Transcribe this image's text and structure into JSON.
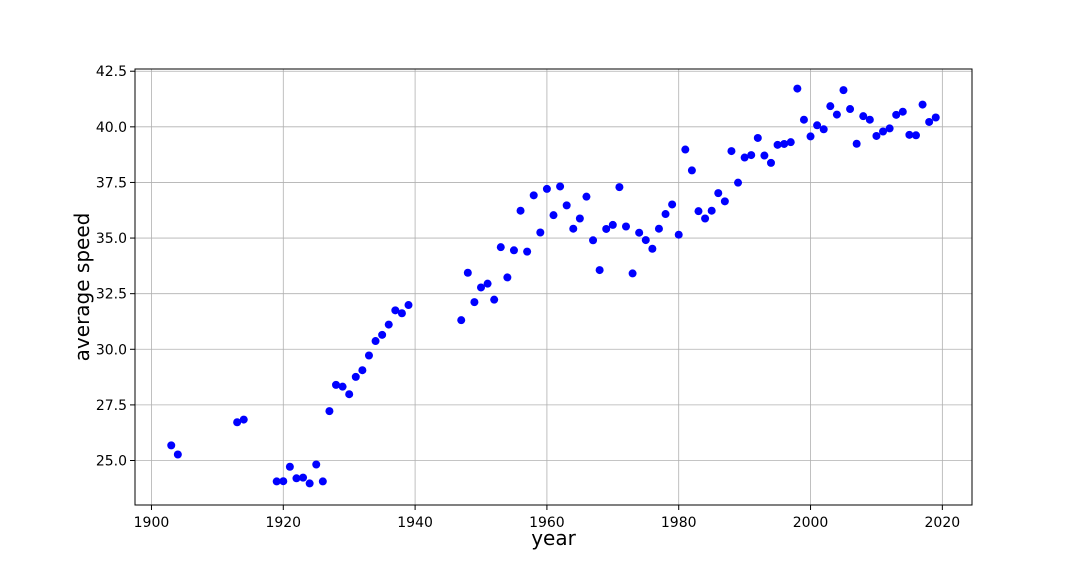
{
  "chart_data": {
    "type": "scatter",
    "title": "",
    "xlabel": "year",
    "ylabel": "average speed",
    "xlim": [
      1897.5,
      2024.5
    ],
    "ylim": [
      23.0,
      42.6
    ],
    "xticks": [
      1900,
      1920,
      1940,
      1960,
      1980,
      2000,
      2020
    ],
    "xtick_labels": [
      "1900",
      "1920",
      "1940",
      "1960",
      "1980",
      "2000",
      "2020"
    ],
    "yticks": [
      25.0,
      27.5,
      30.0,
      32.5,
      35.0,
      37.5,
      40.0,
      42.5
    ],
    "ytick_labels": [
      "25.0",
      "27.5",
      "30.0",
      "32.5",
      "35.0",
      "37.5",
      "40.0",
      "42.5"
    ],
    "grid": true,
    "marker_color": "#0000ff",
    "x": [
      1903,
      1904,
      1913,
      1914,
      1919,
      1920,
      1921,
      1922,
      1923,
      1924,
      1925,
      1926,
      1927,
      1928,
      1929,
      1930,
      1931,
      1932,
      1933,
      1934,
      1935,
      1936,
      1937,
      1938,
      1939,
      1947,
      1948,
      1949,
      1950,
      1951,
      1952,
      1953,
      1954,
      1955,
      1956,
      1957,
      1958,
      1959,
      1960,
      1961,
      1962,
      1963,
      1964,
      1965,
      1966,
      1967,
      1968,
      1969,
      1970,
      1971,
      1972,
      1973,
      1974,
      1975,
      1976,
      1977,
      1978,
      1979,
      1980,
      1981,
      1982,
      1983,
      1984,
      1985,
      1986,
      1987,
      1988,
      1989,
      1990,
      1991,
      1992,
      1993,
      1994,
      1995,
      1996,
      1997,
      1998,
      1999,
      2000,
      2001,
      2002,
      2003,
      2004,
      2005,
      2006,
      2007,
      2008,
      2009,
      2010,
      2011,
      2012,
      2013,
      2014,
      2015,
      2016,
      2017,
      2018,
      2019
    ],
    "y": [
      25.68,
      25.27,
      26.72,
      26.84,
      24.06,
      24.07,
      24.72,
      24.2,
      24.23,
      23.97,
      24.82,
      24.06,
      27.22,
      28.4,
      28.32,
      27.98,
      28.76,
      29.06,
      29.72,
      30.37,
      30.65,
      31.11,
      31.75,
      31.62,
      31.99,
      31.31,
      33.44,
      32.12,
      32.78,
      32.95,
      32.23,
      34.59,
      33.23,
      34.45,
      36.23,
      34.39,
      36.92,
      35.25,
      37.21,
      36.03,
      37.32,
      36.47,
      35.42,
      35.88,
      36.86,
      34.9,
      33.56,
      35.41,
      35.59,
      37.29,
      35.52,
      33.41,
      35.24,
      34.91,
      34.52,
      35.42,
      36.08,
      36.51,
      35.15,
      38.98,
      38.04,
      36.21,
      35.88,
      36.23,
      37.02,
      36.65,
      38.91,
      37.49,
      38.62,
      38.73,
      39.5,
      38.71,
      38.38,
      39.19,
      39.23,
      39.31,
      41.72,
      40.32,
      39.57,
      40.07,
      39.89,
      40.93,
      40.55,
      41.65,
      40.8,
      39.24,
      40.48,
      40.32,
      39.59,
      39.79,
      39.93,
      40.54,
      40.68,
      39.64,
      39.62,
      41.0,
      40.22,
      40.42
    ]
  }
}
